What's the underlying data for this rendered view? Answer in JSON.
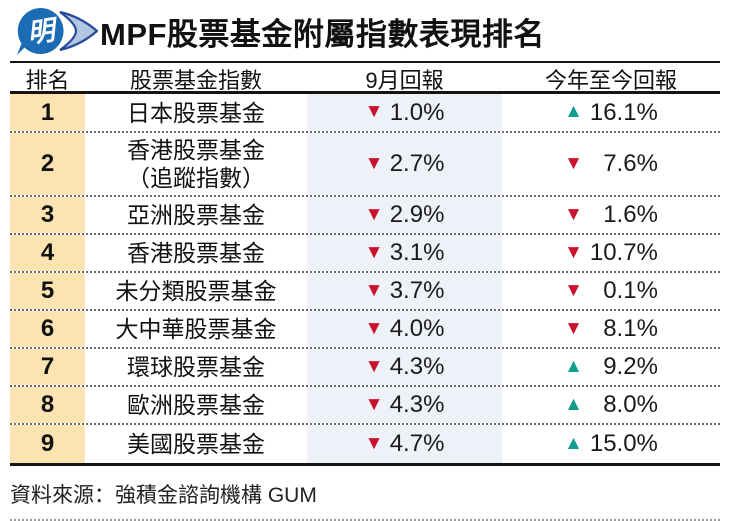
{
  "header": {
    "title": "MPF股票基金附屬指數表現排名",
    "logo_char": "明"
  },
  "table": {
    "columns": [
      "排名",
      "股票基金指數",
      "9月回報",
      "今年至今回報"
    ],
    "rows": [
      {
        "rank": "1",
        "fund_lines": [
          "日本股票基金"
        ],
        "sep": {
          "dir": "down",
          "value": "1.0%"
        },
        "ytd": {
          "dir": "up",
          "value": "16.1%"
        }
      },
      {
        "rank": "2",
        "fund_lines": [
          "香港股票基金",
          "（追蹤指數）"
        ],
        "sep": {
          "dir": "down",
          "value": "2.7%"
        },
        "ytd": {
          "dir": "down",
          "value": "7.6%"
        }
      },
      {
        "rank": "3",
        "fund_lines": [
          "亞洲股票基金"
        ],
        "sep": {
          "dir": "down",
          "value": "2.9%"
        },
        "ytd": {
          "dir": "down",
          "value": "1.6%"
        }
      },
      {
        "rank": "4",
        "fund_lines": [
          "香港股票基金"
        ],
        "sep": {
          "dir": "down",
          "value": "3.1%"
        },
        "ytd": {
          "dir": "down",
          "value": "10.7%"
        }
      },
      {
        "rank": "5",
        "fund_lines": [
          "未分類股票基金"
        ],
        "sep": {
          "dir": "down",
          "value": "3.7%"
        },
        "ytd": {
          "dir": "down",
          "value": "0.1%"
        }
      },
      {
        "rank": "6",
        "fund_lines": [
          "大中華股票基金"
        ],
        "sep": {
          "dir": "down",
          "value": "4.0%"
        },
        "ytd": {
          "dir": "down",
          "value": "8.1%"
        }
      },
      {
        "rank": "7",
        "fund_lines": [
          "環球股票基金"
        ],
        "sep": {
          "dir": "down",
          "value": "4.3%"
        },
        "ytd": {
          "dir": "up",
          "value": "9.2%"
        }
      },
      {
        "rank": "8",
        "fund_lines": [
          "歐洲股票基金"
        ],
        "sep": {
          "dir": "down",
          "value": "4.3%"
        },
        "ytd": {
          "dir": "up",
          "value": "8.0%"
        }
      },
      {
        "rank": "9",
        "fund_lines": [
          "美國股票基金"
        ],
        "sep": {
          "dir": "down",
          "value": "4.7%"
        },
        "ytd": {
          "dir": "up",
          "value": "15.0%"
        }
      }
    ]
  },
  "footer": {
    "source": "資料來源：強積金諮詢機構 GUM"
  },
  "icons": {
    "up": "▲",
    "down": "▼"
  },
  "colors": {
    "down": "#c9132e",
    "up": "#0f9e8c",
    "rankbg": "#fbe3b2",
    "colbg": "#eef2f8",
    "logoblue": "#1b6cb5",
    "logolight": "#b3c7e3",
    "logooutline": "#27489c"
  },
  "chart_data": {
    "type": "table",
    "title": "MPF股票基金附屬指數表現排名",
    "columns": [
      "排名",
      "股票基金指數",
      "9月回報",
      "今年至今回報"
    ],
    "rows": [
      [
        "1",
        "日本股票基金",
        "-1.0%",
        "+16.1%"
      ],
      [
        "2",
        "香港股票基金（追蹤指數）",
        "-2.7%",
        "-7.6%"
      ],
      [
        "3",
        "亞洲股票基金",
        "-2.9%",
        "-1.6%"
      ],
      [
        "4",
        "香港股票基金",
        "-3.1%",
        "-10.7%"
      ],
      [
        "5",
        "未分類股票基金",
        "-3.7%",
        "-0.1%"
      ],
      [
        "6",
        "大中華股票基金",
        "-4.0%",
        "-8.1%"
      ],
      [
        "7",
        "環球股票基金",
        "-4.3%",
        "+9.2%"
      ],
      [
        "8",
        "歐洲股票基金",
        "-4.3%",
        "+8.0%"
      ],
      [
        "9",
        "美國股票基金",
        "-4.7%",
        "+15.0%"
      ]
    ],
    "source": "資料來源：強積金諮詢機構 GUM",
    "layout": {
      "september_column_bg": "#eef2f8",
      "rank_column_bg": "#fbe3b2",
      "down_color": "#c9132e",
      "up_color": "#0f9e8c"
    }
  }
}
